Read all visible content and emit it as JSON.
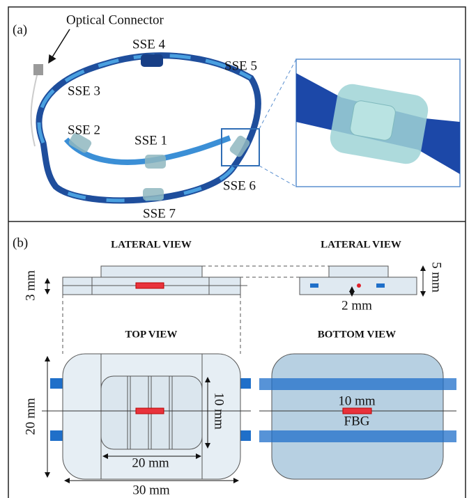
{
  "panel_a": {
    "label": "(a)",
    "connector_label": "Optical Connector",
    "sensors": [
      "SSE 1",
      "SSE 2",
      "SSE 3",
      "SSE 4",
      "SSE 5",
      "SSE 6",
      "SSE 7"
    ]
  },
  "panel_b": {
    "label": "(b)",
    "lateral_left": {
      "title": "LATERAL VIEW",
      "height": "3 mm"
    },
    "lateral_right": {
      "title": "LATERAL VIEW",
      "height": "5 mm",
      "depth": "2 mm"
    },
    "top_view": {
      "title": "TOP VIEW",
      "height": "20 mm",
      "inner_height": "10 mm",
      "inner_width": "20 mm",
      "width": "30 mm"
    },
    "bottom_view": {
      "title": "BOTTOM VIEW",
      "grating_length": "10 mm",
      "grating": "FBG"
    }
  }
}
